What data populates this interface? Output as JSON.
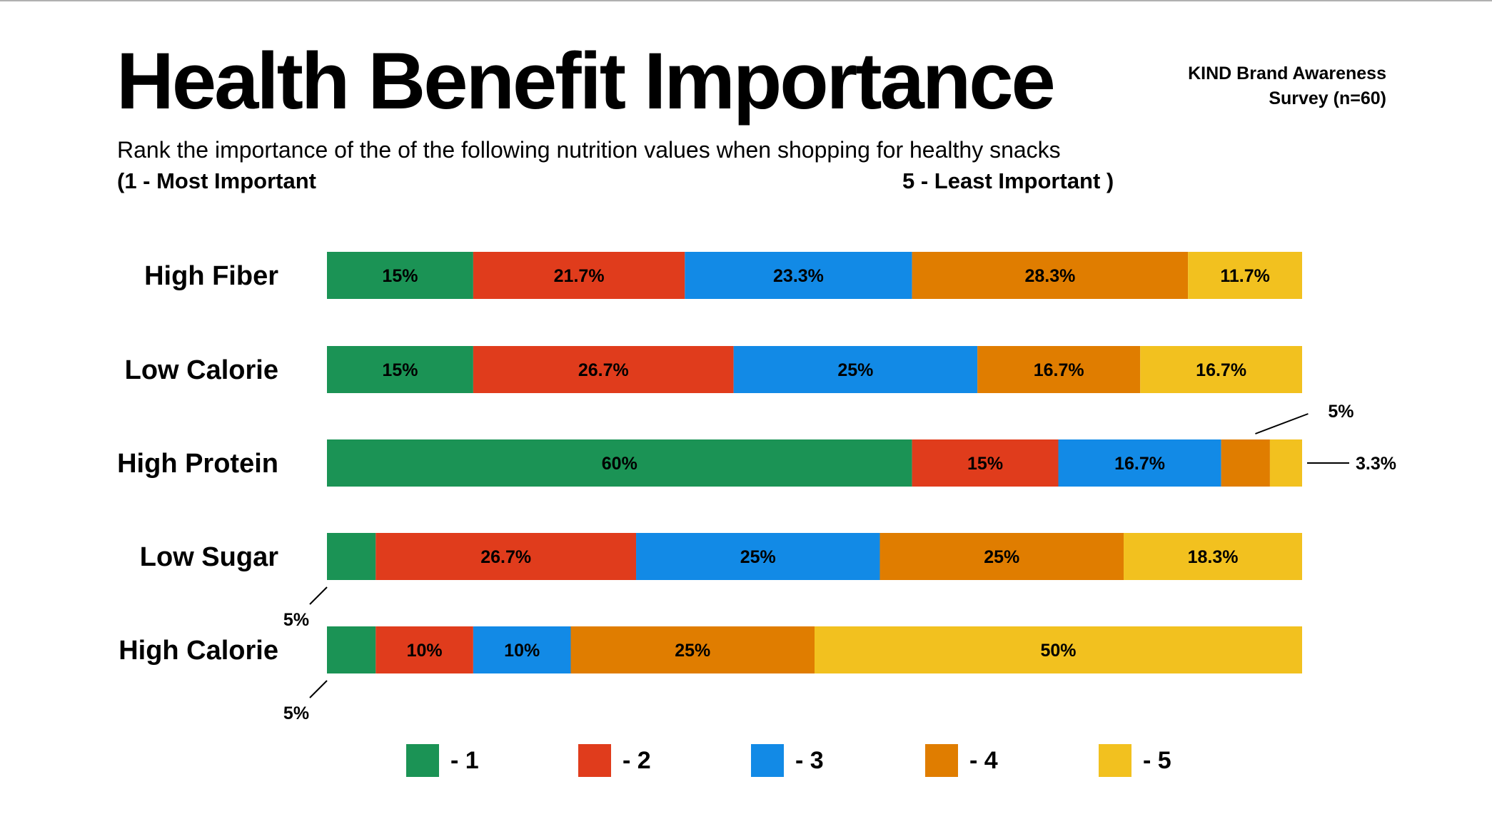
{
  "header": {
    "title": "Health Benefit Importance",
    "source_line1": "KIND Brand Awareness",
    "source_line2": "Survey (n=60)",
    "question": "Rank the importance of the of the following nutrition values when shopping for healthy snacks",
    "scale_left": "(1 - Most Important",
    "scale_right": "5 - Least Important )"
  },
  "colors": {
    "rank1": "#1b9355",
    "rank2": "#e03c1c",
    "rank3": "#128ae6",
    "rank4": "#e07d00",
    "rank5": "#f2c11f"
  },
  "legend": [
    {
      "label": "- 1",
      "color": "#1b9355"
    },
    {
      "label": "- 2",
      "color": "#e03c1c"
    },
    {
      "label": "- 3",
      "color": "#128ae6"
    },
    {
      "label": "- 4",
      "color": "#e07d00"
    },
    {
      "label": "- 5",
      "color": "#f2c11f"
    }
  ],
  "chart_data": {
    "type": "bar",
    "orientation": "horizontal",
    "stacked": true,
    "categories": [
      "High Fiber",
      "Low Calorie",
      "High Protein",
      "Low Sugar",
      "High Calorie"
    ],
    "series": [
      {
        "name": "1",
        "values": [
          15,
          15,
          60,
          5,
          5
        ],
        "labels": [
          "15%",
          "15%",
          "60%",
          "5%",
          "5%"
        ]
      },
      {
        "name": "2",
        "values": [
          21.7,
          26.7,
          15,
          26.7,
          10
        ],
        "labels": [
          "21.7%",
          "26.7%",
          "15%",
          "26.7%",
          "10%"
        ]
      },
      {
        "name": "3",
        "values": [
          23.3,
          25,
          16.7,
          25,
          10
        ],
        "labels": [
          "23.3%",
          "25%",
          "16.7%",
          "25%",
          "10%"
        ]
      },
      {
        "name": "4",
        "values": [
          28.3,
          16.7,
          5,
          25,
          25
        ],
        "labels": [
          "28.3%",
          "16.7%",
          "5%",
          "25%",
          "25%"
        ]
      },
      {
        "name": "5",
        "values": [
          11.7,
          16.7,
          3.3,
          18.3,
          50
        ],
        "labels": [
          "11.7%",
          "16.7%",
          "3.3%",
          "18.3%",
          "50%"
        ]
      }
    ],
    "xlim": [
      0,
      100
    ],
    "external_label_segments": [
      {
        "category": "High Protein",
        "series": "4",
        "side": "top-right"
      },
      {
        "category": "High Protein",
        "series": "5",
        "side": "right"
      },
      {
        "category": "Low Sugar",
        "series": "1",
        "side": "bottom-left"
      },
      {
        "category": "High Calorie",
        "series": "1",
        "side": "bottom-left"
      }
    ],
    "grid": false,
    "legend_position": "bottom"
  }
}
